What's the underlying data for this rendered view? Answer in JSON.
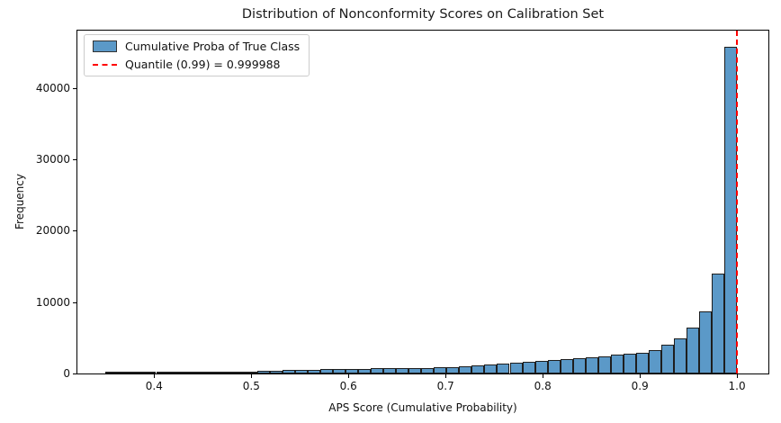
{
  "chart_data": {
    "type": "bar",
    "title": "Distribution of Nonconformity Scores on Calibration Set",
    "xlabel": "APS Score (Cumulative Probability)",
    "ylabel": "Frequency",
    "xlim": [
      0.321,
      1.0323
    ],
    "ylim": [
      0,
      48050
    ],
    "xticks": [
      0.4,
      0.5,
      0.6,
      0.7,
      0.8,
      0.9,
      1.0
    ],
    "yticks": [
      0,
      10000,
      20000,
      30000,
      40000
    ],
    "grid": false,
    "legend_position": "upper left",
    "bin_start": 0.35,
    "bin_width": 0.013,
    "bin_counts": [
      5,
      6,
      8,
      10,
      12,
      15,
      20,
      30,
      45,
      80,
      200,
      320,
      420,
      440,
      450,
      470,
      560,
      600,
      620,
      640,
      680,
      720,
      760,
      780,
      800,
      820,
      850,
      950,
      1050,
      1150,
      1300,
      1400,
      1550,
      1700,
      1800,
      1900,
      2000,
      2150,
      2300,
      2450,
      2600,
      2750,
      2950,
      3300,
      4000,
      4900,
      6500,
      8700,
      14000,
      45800
    ],
    "quantile_line_x": 0.999988,
    "quantile_level": 0.99
  },
  "legend": {
    "items": [
      {
        "label": "Cumulative Proba of True Class",
        "swatch": "histogram-patch"
      },
      {
        "label": "Quantile (0.99) = 0.999988",
        "swatch": "red-dashed-line"
      }
    ]
  },
  "colors": {
    "bar_fill": "#5B99C8",
    "bar_edge": "#1E1E1E",
    "quantile_line": "#FF0000",
    "axis": "#000000",
    "legend_border": "#CCCCCC",
    "background": "#FFFFFF"
  }
}
